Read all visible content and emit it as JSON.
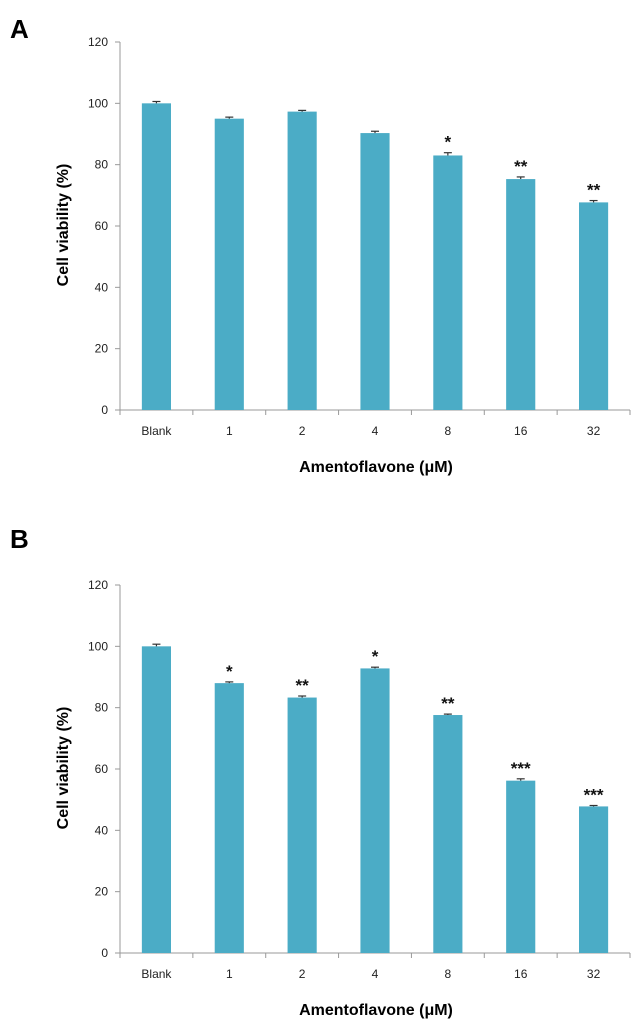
{
  "chart_data": [
    {
      "type": "bar",
      "panel": "A",
      "categories": [
        "Blank",
        "1",
        "2",
        "4",
        "8",
        "16",
        "32"
      ],
      "values": [
        100,
        95,
        97.3,
        90.3,
        83,
        75.3,
        67.7
      ],
      "errors": [
        0.6,
        0.5,
        0.4,
        0.6,
        0.9,
        0.7,
        0.6
      ],
      "significance": [
        "",
        "",
        "",
        "",
        "*",
        "**",
        "**"
      ],
      "xlabel": "Amentoflavone (μM)",
      "ylabel": "Cell viability (%)",
      "ylim": [
        0,
        120
      ],
      "yticks": [
        0,
        20,
        40,
        60,
        80,
        100,
        120
      ],
      "bar_color": "#4bacc6",
      "grid": false,
      "legend": "none"
    },
    {
      "type": "bar",
      "panel": "B",
      "categories": [
        "Blank",
        "1",
        "2",
        "4",
        "8",
        "16",
        "32"
      ],
      "values": [
        100,
        88,
        83.3,
        92.8,
        77.6,
        56.2,
        47.8
      ],
      "errors": [
        0.7,
        0.4,
        0.5,
        0.4,
        0.3,
        0.6,
        0.3
      ],
      "significance": [
        "",
        "*",
        "**",
        "*",
        "**",
        "***",
        "***"
      ],
      "xlabel": "Amentoflavone (μM)",
      "ylabel": "Cell viability (%)",
      "ylim": [
        0,
        120
      ],
      "yticks": [
        0,
        20,
        40,
        60,
        80,
        100,
        120
      ],
      "bar_color": "#4bacc6",
      "grid": false,
      "legend": "none"
    }
  ]
}
